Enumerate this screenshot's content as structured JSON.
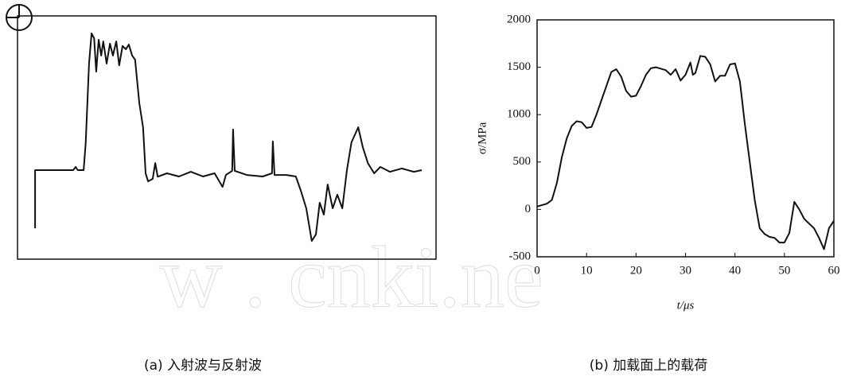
{
  "chart_data": [
    {
      "type": "line",
      "caption": "(a) 入射波与反射波",
      "xlim": [
        0,
        100
      ],
      "ylim": [
        0,
        100
      ],
      "x": [
        4.2,
        4.2,
        13.3,
        13.9,
        14.4,
        15.8,
        16.3,
        17.1,
        17.7,
        18.3,
        18.8,
        19.4,
        20.0,
        20.5,
        21.3,
        22.1,
        22.8,
        23.6,
        24.3,
        25.1,
        25.9,
        26.6,
        27.4,
        28.1,
        29.1,
        30.0,
        30.6,
        31.2,
        32.3,
        32.9,
        33.5,
        35.7,
        38.6,
        41.4,
        44.3,
        47.1,
        49.0,
        49.8,
        51.3,
        51.5,
        51.9,
        54.8,
        58.6,
        60.8,
        61.0,
        61.4,
        64.3,
        66.5,
        67.7,
        69.0,
        70.3,
        71.3,
        72.2,
        73.2,
        74.1,
        75.3,
        76.4,
        77.6,
        78.7,
        79.8,
        81.4,
        82.5,
        83.7,
        85.2,
        86.7,
        89.0,
        91.8,
        94.7,
        96.6
      ],
      "values": [
        12.7,
        36.6,
        36.6,
        37.9,
        36.6,
        36.6,
        47.7,
        80.4,
        92.8,
        90.8,
        77.1,
        90.2,
        83.7,
        89.5,
        80.4,
        88.6,
        83.7,
        89.5,
        79.7,
        87.6,
        86.3,
        88.2,
        83.7,
        82.0,
        64.1,
        54.2,
        35.3,
        32.0,
        33.0,
        39.5,
        33.9,
        35.3,
        34.0,
        35.9,
        34.0,
        35.3,
        29.7,
        34.6,
        36.3,
        53.3,
        36.3,
        34.6,
        34.0,
        35.3,
        48.4,
        34.6,
        34.6,
        34.0,
        28.1,
        20.9,
        7.5,
        10.1,
        23.2,
        18.3,
        30.7,
        20.9,
        26.5,
        20.9,
        36.6,
        48.0,
        54.2,
        46.1,
        39.5,
        35.3,
        37.9,
        35.9,
        37.3,
        35.9,
        36.6
      ],
      "color": "#111111"
    },
    {
      "type": "line",
      "caption": "(b) 加载面上的载荷",
      "xlabel": "t/μs",
      "ylabel": "σ/MPa",
      "xlim": [
        0,
        60
      ],
      "ylim": [
        -500,
        2000
      ],
      "xticks": [
        0,
        10,
        20,
        30,
        40,
        50,
        60
      ],
      "yticks": [
        -500,
        0,
        500,
        1000,
        1500,
        2000
      ],
      "x": [
        0,
        2,
        3,
        4,
        5,
        6,
        7,
        8,
        9,
        10,
        11,
        12,
        14,
        15,
        16,
        17,
        18,
        19,
        20,
        21,
        22,
        23,
        24,
        26,
        27,
        28,
        29,
        30,
        31,
        31.5,
        32,
        33,
        34,
        35,
        36,
        37,
        38,
        39,
        40,
        41,
        42,
        43,
        44,
        45,
        46,
        47,
        48,
        49,
        50,
        51,
        52,
        53,
        54,
        55,
        56,
        57,
        58,
        59,
        60
      ],
      "values": [
        30,
        60,
        100,
        280,
        550,
        750,
        880,
        930,
        920,
        860,
        870,
        1000,
        1300,
        1450,
        1480,
        1400,
        1250,
        1190,
        1200,
        1300,
        1420,
        1490,
        1500,
        1470,
        1420,
        1480,
        1360,
        1420,
        1550,
        1420,
        1440,
        1620,
        1610,
        1530,
        1350,
        1410,
        1410,
        1530,
        1540,
        1350,
        900,
        500,
        100,
        -200,
        -260,
        -290,
        -300,
        -350,
        -350,
        -250,
        80,
        0,
        -100,
        -150,
        -200,
        -300,
        -420,
        -200,
        -120
      ],
      "color": "#111111"
    }
  ],
  "watermark": "w . cnki.ne"
}
